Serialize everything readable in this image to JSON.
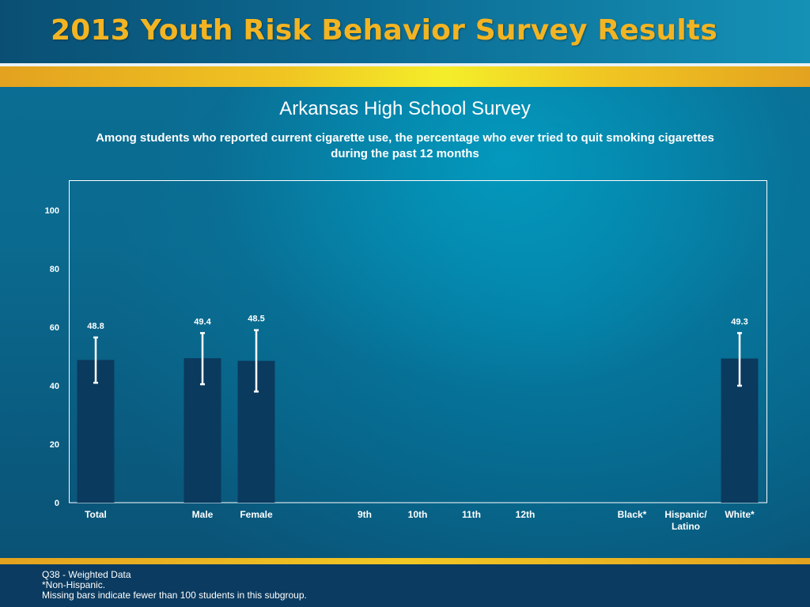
{
  "header": {
    "title": "2013 Youth Risk Behavior Survey Results"
  },
  "chart_data": {
    "type": "bar",
    "title": "Arkansas High School Survey",
    "subtitle": "Among students who reported current cigarette use, the percentage who ever tried to quit smoking cigarettes during the past 12 months",
    "xlabel": "",
    "ylabel": "",
    "ylim": [
      0,
      100
    ],
    "yticks": [
      0,
      20,
      40,
      60,
      80,
      100
    ],
    "grid": false,
    "bar_color": "#0b3a5f",
    "categories": [
      {
        "label": "Total"
      },
      {
        "label": "Male"
      },
      {
        "label": "Female"
      },
      {
        "label": "9th"
      },
      {
        "label": "10th"
      },
      {
        "label": "11th"
      },
      {
        "label": "12th"
      },
      {
        "label": "Black*"
      },
      {
        "label": "Hispanic/",
        "label2": "Latino"
      },
      {
        "label": "White*"
      }
    ],
    "values": [
      48.8,
      49.4,
      48.5,
      null,
      null,
      null,
      null,
      null,
      null,
      49.3
    ],
    "value_labels": [
      "48.8",
      "49.4",
      "48.5",
      "",
      "",
      "",
      "",
      "",
      "",
      "49.3"
    ],
    "ci_low": [
      41.0,
      40.5,
      38.0,
      null,
      null,
      null,
      null,
      null,
      null,
      40.0
    ],
    "ci_high": [
      56.5,
      58.0,
      59.0,
      null,
      null,
      null,
      null,
      null,
      null,
      58.0
    ]
  },
  "footer": {
    "line1": "Q38 - Weighted Data",
    "line2": "*Non-Hispanic.",
    "line3": "Missing bars indicate fewer than 100 students in this subgroup."
  }
}
